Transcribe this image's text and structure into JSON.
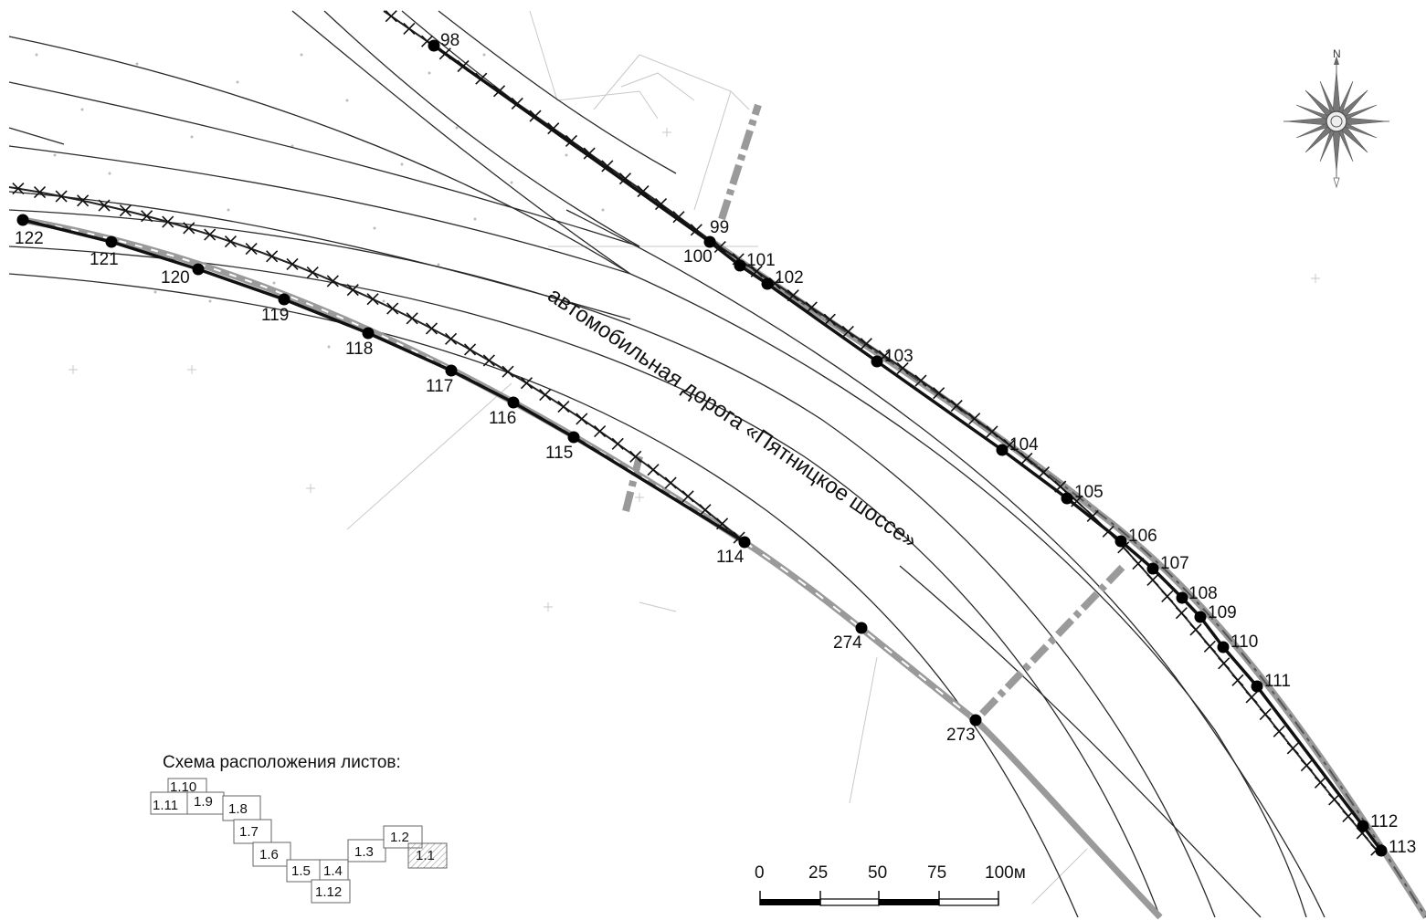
{
  "road_label": "автомобильная дорога «Пятницкое шоссе»",
  "north_label": "N",
  "points": [
    {
      "id": "98"
    },
    {
      "id": "99"
    },
    {
      "id": "100"
    },
    {
      "id": "101"
    },
    {
      "id": "102"
    },
    {
      "id": "103"
    },
    {
      "id": "104"
    },
    {
      "id": "105"
    },
    {
      "id": "106"
    },
    {
      "id": "107"
    },
    {
      "id": "108"
    },
    {
      "id": "109"
    },
    {
      "id": "110"
    },
    {
      "id": "111"
    },
    {
      "id": "112"
    },
    {
      "id": "113"
    },
    {
      "id": "114"
    },
    {
      "id": "115"
    },
    {
      "id": "116"
    },
    {
      "id": "117"
    },
    {
      "id": "118"
    },
    {
      "id": "119"
    },
    {
      "id": "120"
    },
    {
      "id": "121"
    },
    {
      "id": "122"
    },
    {
      "id": "273"
    },
    {
      "id": "274"
    }
  ],
  "legend": {
    "title": "Схема расположения листов:",
    "sheets": [
      "1.10",
      "1.11",
      "1.9",
      "1.8",
      "1.7",
      "1.6",
      "1.5",
      "1.4",
      "1.12",
      "1.3",
      "1.2",
      "1.1"
    ],
    "current_sheet": "1.1"
  },
  "scale_bar": {
    "labels": [
      "0",
      "25",
      "50",
      "75",
      "100м"
    ]
  },
  "colors": {
    "boundary": "#111111",
    "fence": "#222222",
    "gray_line": "#9a9a9a",
    "road_line": "#2a2a2a",
    "thin_line": "#bdbdbd"
  }
}
